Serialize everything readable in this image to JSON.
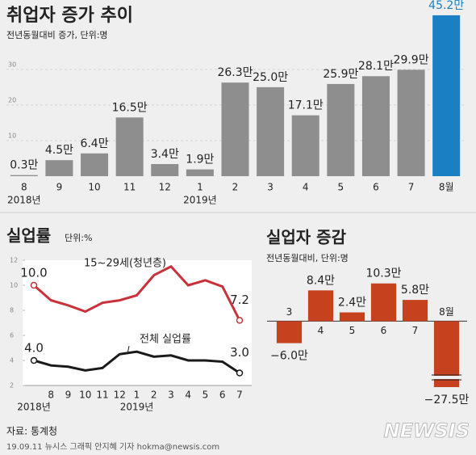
{
  "chart_data": [
    {
      "type": "bar",
      "title": "취업자 증가 추이",
      "subtitle": "전년동월대비 증가, 단위:명",
      "categories": [
        "8",
        "9",
        "10",
        "11",
        "12",
        "1",
        "2",
        "3",
        "4",
        "5",
        "6",
        "7",
        "8월"
      ],
      "values": [
        0.3,
        4.5,
        6.4,
        16.5,
        3.4,
        1.9,
        26.3,
        25.0,
        17.1,
        25.9,
        28.1,
        29.9,
        45.2
      ],
      "value_labels": [
        "0.3만",
        "4.5만",
        "6.4만",
        "16.5만",
        "3.4만",
        "1.9만",
        "26.3만",
        "25.0만",
        "17.1만",
        "25.9만",
        "28.1만",
        "29.9만",
        "45.2만"
      ],
      "color": "#8e8e8e",
      "highlight": {
        "index": 12,
        "color": "#1b7fc4"
      },
      "ylim": [
        0,
        47
      ],
      "yticks": [
        10,
        20,
        30
      ],
      "grid": true,
      "year_labels": [
        {
          "label": "2018년",
          "index": 0
        },
        {
          "label": "2019년",
          "index": 5
        }
      ]
    },
    {
      "type": "line",
      "title": "실업률",
      "subtitle": "단위:%",
      "categories": [
        null,
        "8",
        "9",
        "10",
        "11",
        "12",
        "1",
        "2",
        "3",
        "4",
        "5",
        "6",
        "7"
      ],
      "series": [
        {
          "name": "15~29세(청년층)",
          "color": "#c8323a",
          "values": [
            10.0,
            8.8,
            8.4,
            7.9,
            8.6,
            8.8,
            9.2,
            10.8,
            11.5,
            10.0,
            10.4,
            9.9,
            7.2
          ],
          "value_labels": [
            "10.0",
            null,
            null,
            null,
            null,
            null,
            null,
            null,
            null,
            null,
            null,
            null,
            "7.2"
          ]
        },
        {
          "name": "전체 실업률",
          "color": "#1a1a1a",
          "values": [
            4.0,
            3.6,
            3.5,
            3.2,
            3.4,
            4.5,
            4.7,
            4.3,
            4.4,
            4.0,
            4.0,
            3.9,
            3.0
          ],
          "value_labels": [
            "4.0",
            null,
            null,
            null,
            null,
            null,
            null,
            null,
            null,
            null,
            null,
            null,
            "3.0"
          ]
        }
      ],
      "ylim": [
        2,
        12
      ],
      "yticks": [
        2,
        4,
        6,
        8,
        10,
        12
      ],
      "year_labels": [
        {
          "label": "2018년",
          "index": 0
        },
        {
          "label": "2019년",
          "index": 6
        }
      ]
    },
    {
      "type": "bar",
      "title": "실업자 증감",
      "subtitle": "전년동월대비, 단위:명",
      "categories": [
        "3",
        "4",
        "5",
        "6",
        "7",
        "8월"
      ],
      "values": [
        -6.0,
        8.4,
        2.4,
        10.3,
        5.8,
        -27.5
      ],
      "value_labels": [
        "−6.0만",
        "8.4만",
        "2.4만",
        "10.3만",
        "5.8만",
        "−27.5만"
      ],
      "color": "#c6421f",
      "ylim": [
        -18,
        12
      ],
      "axis_break": true
    }
  ],
  "footer": {
    "source": "자료: 통계청",
    "credit": "19.09.11 뉴시스 그래픽 안지혜 기자 hokma@newsis.com",
    "logo": "NEWSIS"
  }
}
